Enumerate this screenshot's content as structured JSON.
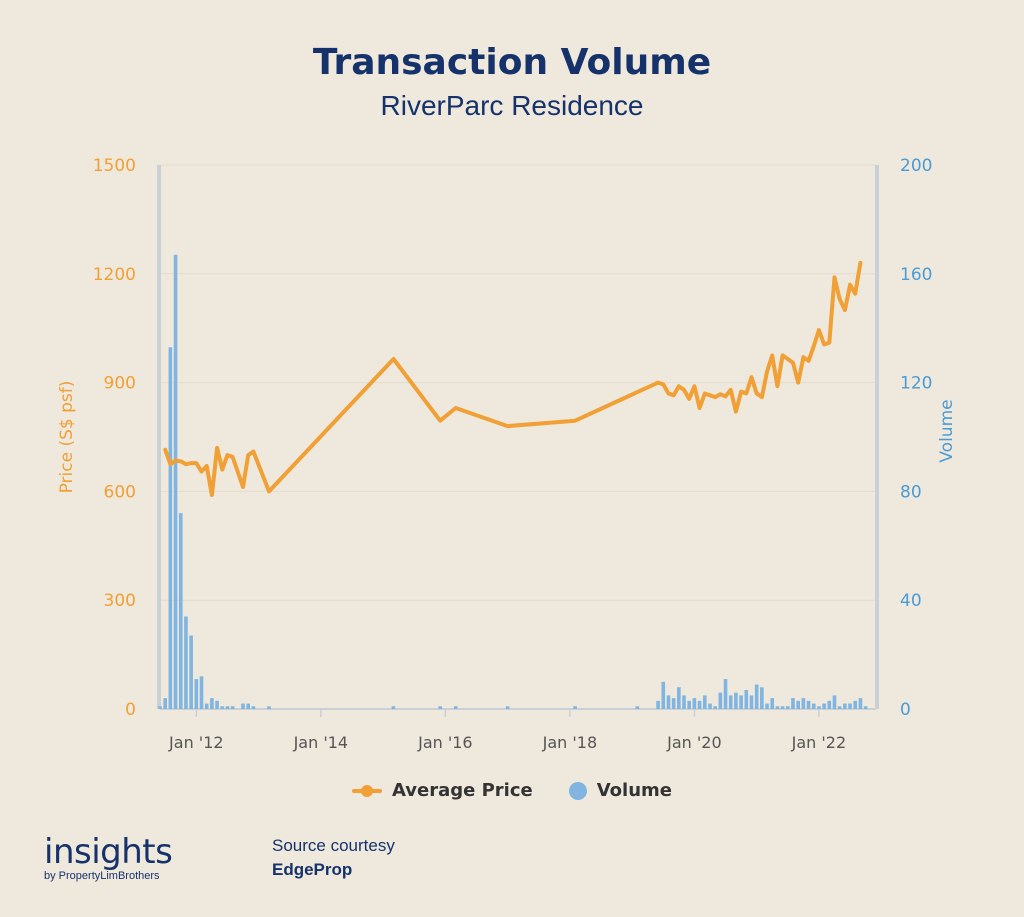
{
  "chart_data": {
    "type": "line+bar",
    "title": "Transaction Volume",
    "subtitle": "RiverParc Residence",
    "y_left": {
      "label": "Price (S$ psf)",
      "ticks": [
        0,
        300,
        600,
        900,
        1200,
        1500
      ],
      "range": [
        0,
        1500
      ],
      "color": "#F0A035"
    },
    "y_right": {
      "label": "Volume",
      "ticks": [
        0,
        40,
        80,
        120,
        160,
        200
      ],
      "range": [
        0,
        200
      ],
      "color": "#4A9CD6"
    },
    "x_axis": {
      "tick_labels": [
        "Jan '12",
        "Jan '14",
        "Jan '16",
        "Jan '18",
        "Jan '20",
        "Jan '22"
      ],
      "range": [
        "2011-06",
        "2022-12"
      ]
    },
    "grid": true,
    "legend_position": "bottom-center",
    "series": [
      {
        "name": "Average Price",
        "kind": "line",
        "axis": "left",
        "color": "#F0A035",
        "points": [
          [
            "2011-07",
            715
          ],
          [
            "2011-08",
            675
          ],
          [
            "2011-09",
            685
          ],
          [
            "2011-10",
            683
          ],
          [
            "2011-11",
            675
          ],
          [
            "2011-12",
            678
          ],
          [
            "2012-01",
            678
          ],
          [
            "2012-02",
            655
          ],
          [
            "2012-03",
            670
          ],
          [
            "2012-04",
            590
          ],
          [
            "2012-05",
            720
          ],
          [
            "2012-06",
            660
          ],
          [
            "2012-07",
            700
          ],
          [
            "2012-08",
            695
          ],
          [
            "2012-10",
            612
          ],
          [
            "2012-11",
            700
          ],
          [
            "2012-12",
            710
          ],
          [
            "2013-03",
            600
          ],
          [
            "2015-03",
            965
          ],
          [
            "2015-12",
            795
          ],
          [
            "2016-03",
            830
          ],
          [
            "2017-01",
            780
          ],
          [
            "2018-02",
            795
          ],
          [
            "2019-06",
            900
          ],
          [
            "2019-07",
            895
          ],
          [
            "2019-08",
            870
          ],
          [
            "2019-09",
            865
          ],
          [
            "2019-10",
            890
          ],
          [
            "2019-11",
            880
          ],
          [
            "2019-12",
            855
          ],
          [
            "2020-01",
            890
          ],
          [
            "2020-02",
            830
          ],
          [
            "2020-03",
            870
          ],
          [
            "2020-04",
            865
          ],
          [
            "2020-05",
            860
          ],
          [
            "2020-06",
            868
          ],
          [
            "2020-07",
            862
          ],
          [
            "2020-08",
            880
          ],
          [
            "2020-09",
            820
          ],
          [
            "2020-10",
            875
          ],
          [
            "2020-11",
            870
          ],
          [
            "2020-12",
            915
          ],
          [
            "2021-01",
            870
          ],
          [
            "2021-02",
            860
          ],
          [
            "2021-03",
            930
          ],
          [
            "2021-04",
            975
          ],
          [
            "2021-05",
            890
          ],
          [
            "2021-06",
            975
          ],
          [
            "2021-07",
            965
          ],
          [
            "2021-08",
            955
          ],
          [
            "2021-09",
            900
          ],
          [
            "2021-10",
            970
          ],
          [
            "2021-11",
            960
          ],
          [
            "2021-12",
            1000
          ],
          [
            "2022-01",
            1045
          ],
          [
            "2022-02",
            1005
          ],
          [
            "2022-03",
            1010
          ],
          [
            "2022-04",
            1190
          ],
          [
            "2022-05",
            1130
          ],
          [
            "2022-06",
            1100
          ],
          [
            "2022-07",
            1170
          ],
          [
            "2022-08",
            1145
          ],
          [
            "2022-09",
            1230
          ]
        ]
      },
      {
        "name": "Volume",
        "kind": "bar",
        "axis": "right",
        "color": "#7FB5E0",
        "points": [
          [
            "2011-06",
            1
          ],
          [
            "2011-07",
            4
          ],
          [
            "2011-08",
            133
          ],
          [
            "2011-09",
            167
          ],
          [
            "2011-10",
            72
          ],
          [
            "2011-11",
            34
          ],
          [
            "2011-12",
            27
          ],
          [
            "2012-01",
            11
          ],
          [
            "2012-02",
            12
          ],
          [
            "2012-03",
            2
          ],
          [
            "2012-04",
            4
          ],
          [
            "2012-05",
            3
          ],
          [
            "2012-06",
            1
          ],
          [
            "2012-07",
            1
          ],
          [
            "2012-08",
            1
          ],
          [
            "2012-10",
            2
          ],
          [
            "2012-11",
            2
          ],
          [
            "2012-12",
            1
          ],
          [
            "2013-03",
            1
          ],
          [
            "2015-03",
            1
          ],
          [
            "2015-12",
            1
          ],
          [
            "2016-03",
            1
          ],
          [
            "2017-01",
            1
          ],
          [
            "2018-02",
            1
          ],
          [
            "2019-02",
            1
          ],
          [
            "2019-06",
            3
          ],
          [
            "2019-07",
            10
          ],
          [
            "2019-08",
            5
          ],
          [
            "2019-09",
            4
          ],
          [
            "2019-10",
            8
          ],
          [
            "2019-11",
            5
          ],
          [
            "2019-12",
            3
          ],
          [
            "2020-01",
            4
          ],
          [
            "2020-02",
            3
          ],
          [
            "2020-03",
            5
          ],
          [
            "2020-04",
            2
          ],
          [
            "2020-05",
            1
          ],
          [
            "2020-06",
            6
          ],
          [
            "2020-07",
            11
          ],
          [
            "2020-08",
            5
          ],
          [
            "2020-09",
            6
          ],
          [
            "2020-10",
            5
          ],
          [
            "2020-11",
            7
          ],
          [
            "2020-12",
            5
          ],
          [
            "2021-01",
            9
          ],
          [
            "2021-02",
            8
          ],
          [
            "2021-03",
            2
          ],
          [
            "2021-04",
            4
          ],
          [
            "2021-05",
            1
          ],
          [
            "2021-06",
            1
          ],
          [
            "2021-07",
            1
          ],
          [
            "2021-08",
            4
          ],
          [
            "2021-09",
            3
          ],
          [
            "2021-10",
            4
          ],
          [
            "2021-11",
            3
          ],
          [
            "2021-12",
            2
          ],
          [
            "2022-01",
            1
          ],
          [
            "2022-02",
            2
          ],
          [
            "2022-03",
            3
          ],
          [
            "2022-04",
            5
          ],
          [
            "2022-05",
            1
          ],
          [
            "2022-06",
            2
          ],
          [
            "2022-07",
            2
          ],
          [
            "2022-08",
            3
          ],
          [
            "2022-09",
            4
          ],
          [
            "2022-10",
            1
          ]
        ]
      }
    ]
  },
  "legend": {
    "items": [
      "Average Price",
      "Volume"
    ]
  },
  "branding": {
    "logo_text": "insights",
    "logo_sub": "by PropertyLimBrothers"
  },
  "source": {
    "label": "Source courtesy",
    "name": "EdgeProp"
  }
}
